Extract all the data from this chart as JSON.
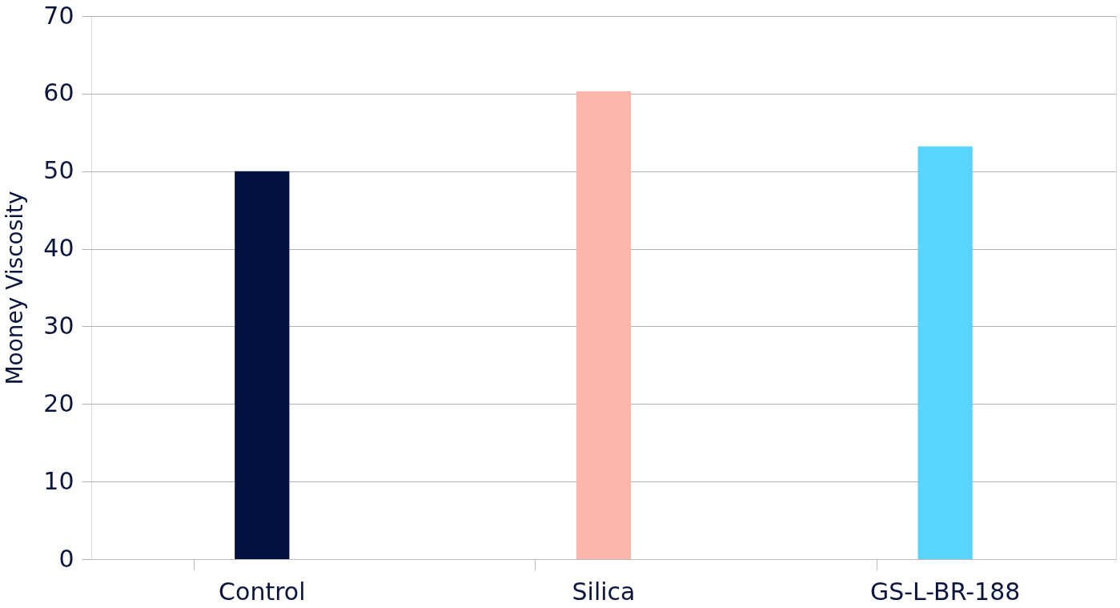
{
  "chart_data": {
    "type": "bar",
    "ylabel": "Mooney Viscosity",
    "categories": [
      "Control",
      "Silica",
      "GS-L-BR-188"
    ],
    "values": [
      50,
      60.3,
      53.2
    ],
    "colors": [
      "#02113f",
      "#fcb5aa",
      "#58d4fd"
    ],
    "ylim": [
      0,
      70
    ],
    "yticks": [
      0,
      10,
      20,
      30,
      40,
      50,
      60,
      70
    ],
    "grid": "y"
  }
}
